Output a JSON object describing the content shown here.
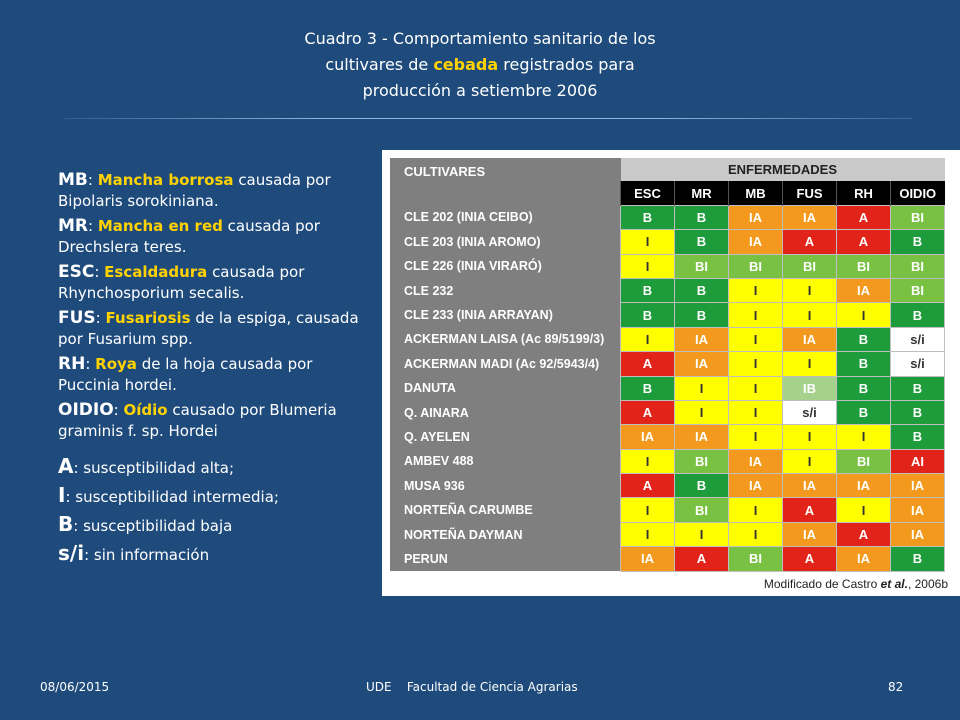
{
  "title": {
    "line1": "Cuadro 3 - Comportamiento sanitario de los",
    "line2_pre": "cultivares de ",
    "line2_hl": "cebada",
    "line2_post": " registrados para",
    "line3": "producción a setiembre 2006"
  },
  "legend": [
    {
      "abbr": "MB",
      "name": "Mancha borrosa",
      "desc": " causada por Bipolaris sorokiniana."
    },
    {
      "abbr": "MR",
      "name": "Mancha en red",
      "desc": " causada por Drechslera teres."
    },
    {
      "abbr": "ESC",
      "name": "Escaldadura",
      "desc": " causada por Rhynchosporium secalis."
    },
    {
      "abbr": "FUS",
      "name": "Fusariosis",
      "desc": " de la espiga, causada por Fusarium spp."
    },
    {
      "abbr": "RH",
      "name": "Roya",
      "desc": " de la hoja causada por Puccinia hordei."
    },
    {
      "abbr": "OIDIO",
      "name": "Oídio",
      "desc": " causado por Blumeria graminis f. sp. Hordei"
    }
  ],
  "scale": [
    {
      "key": "A",
      "desc": ": susceptibilidad alta;"
    },
    {
      "key": "I",
      "desc": ": susceptibilidad intermedia;"
    },
    {
      "key": "B",
      "desc": ": susceptibilidad baja"
    },
    {
      "key": "s/i",
      "desc": ": sin información"
    }
  ],
  "table": {
    "col_cultivares": "CULTIVARES",
    "col_enfermedades": "ENFERMEDADES",
    "diseases": [
      "ESC",
      "MR",
      "MB",
      "FUS",
      "RH",
      "OIDIO"
    ],
    "rows": [
      {
        "name": "CLE 202 (INIA CEIBO)",
        "values": [
          "B",
          "B",
          "IA",
          "IA",
          "A",
          "BI"
        ]
      },
      {
        "name": "CLE 203 (INIA AROMO)",
        "values": [
          "I",
          "B",
          "IA",
          "A",
          "A",
          "B"
        ]
      },
      {
        "name": "CLE 226 (INIA VIRARÓ)",
        "values": [
          "I",
          "BI",
          "BI",
          "BI",
          "BI",
          "BI"
        ]
      },
      {
        "name": "CLE 232",
        "values": [
          "B",
          "B",
          "I",
          "I",
          "IA",
          "BI"
        ]
      },
      {
        "name": "CLE 233 (INIA ARRAYAN)",
        "values": [
          "B",
          "B",
          "I",
          "I",
          "I",
          "B"
        ]
      },
      {
        "name": "ACKERMAN LAISA (Ac 89/5199/3)",
        "values": [
          "I",
          "IA",
          "I",
          "IA",
          "B",
          "s/i"
        ]
      },
      {
        "name": "ACKERMAN MADI (Ac 92/5943/4)",
        "values": [
          "A",
          "IA",
          "I",
          "I",
          "B",
          "s/i"
        ]
      },
      {
        "name": "DANUTA",
        "values": [
          "B",
          "I",
          "I",
          "IB",
          "B",
          "B"
        ]
      },
      {
        "name": "Q. AINARA",
        "values": [
          "A",
          "I",
          "I",
          "s/i",
          "B",
          "B"
        ]
      },
      {
        "name": "Q. AYELEN",
        "values": [
          "IA",
          "IA",
          "I",
          "I",
          "I",
          "B"
        ]
      },
      {
        "name": "AMBEV 488",
        "values": [
          "I",
          "BI",
          "IA",
          "I",
          "BI",
          "AI"
        ]
      },
      {
        "name": "MUSA 936",
        "values": [
          "A",
          "B",
          "IA",
          "IA",
          "IA",
          "IA"
        ]
      },
      {
        "name": "NORTEÑA CARUMBE",
        "values": [
          "I",
          "BI",
          "I",
          "A",
          "I",
          "IA"
        ]
      },
      {
        "name": "NORTEÑA DAYMAN",
        "values": [
          "I",
          "I",
          "I",
          "IA",
          "A",
          "IA"
        ]
      },
      {
        "name": "PERUN",
        "values": [
          "IA",
          "A",
          "BI",
          "A",
          "IA",
          "B"
        ]
      }
    ],
    "credit_pre": "Modificado de Castro ",
    "credit_em": "et al.",
    "credit_post": ", 2006b"
  },
  "footer": {
    "date": "08/06/2015",
    "center": "UDE    Facultad de Ciencia Agrarias",
    "page": "82"
  },
  "colors": {
    "background": "#1f4b7c",
    "highlight": "#ffd200",
    "B": "#1e9b3a",
    "BI": "#79c142",
    "I": "#ffff00",
    "IA": "#f39a1e",
    "A": "#e2231a"
  }
}
